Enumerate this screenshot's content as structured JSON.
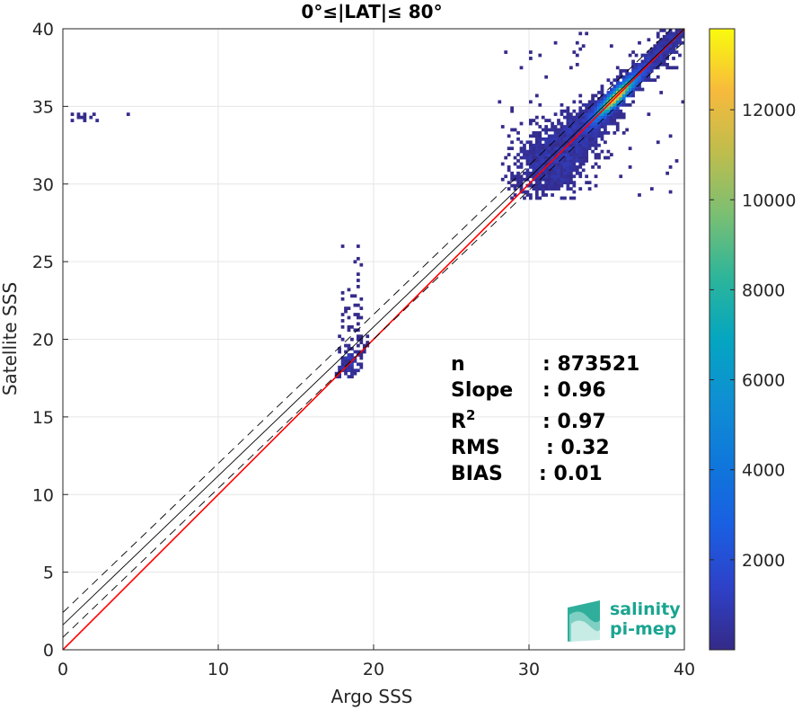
{
  "chart_data": {
    "type": "heatmap",
    "title": "0°≤|LAT|≤ 80°",
    "xlabel": "Argo SSS",
    "ylabel": "Satellite SSS",
    "xlim": [
      0,
      40
    ],
    "ylim": [
      0,
      40
    ],
    "xticks": [
      0,
      10,
      20,
      30,
      40
    ],
    "yticks": [
      0,
      5,
      10,
      15,
      20,
      25,
      30,
      35,
      40
    ],
    "grid": true,
    "colormap": "parula",
    "colorbar": {
      "range": [
        0,
        13800
      ],
      "ticks": [
        2000,
        4000,
        6000,
        8000,
        10000,
        12000
      ]
    },
    "lines": [
      {
        "role": "one-to-one",
        "color": "#ff0000",
        "style": "solid",
        "slope": 1.0,
        "intercept": 0.0
      },
      {
        "role": "regression",
        "color": "#000000",
        "style": "solid",
        "slope": 0.96,
        "intercept": 1.6
      },
      {
        "role": "regression-upper",
        "color": "#000000",
        "style": "dashed",
        "slope": 0.96,
        "intercept": 2.4
      },
      {
        "role": "regression-lower",
        "color": "#000000",
        "style": "dashed",
        "slope": 0.96,
        "intercept": 0.8
      }
    ],
    "stats": [
      {
        "label": "n",
        "sup": "",
        "value": ": 873521"
      },
      {
        "label": "Slope",
        "sup": "",
        "value": ": 0.96"
      },
      {
        "label": "R",
        "sup": "2",
        "value": ": 0.97"
      },
      {
        "label": "RMS",
        "sup": "",
        "value": ": 0.32"
      },
      {
        "label": "BIAS",
        "sup": "",
        "value": ": 0.01"
      }
    ],
    "density_clusters": [
      {
        "name": "main",
        "x_range": [
          28,
          40
        ],
        "y_range": [
          29,
          40
        ],
        "peak": 13800
      },
      {
        "name": "low-salinity",
        "x_range": [
          17.5,
          19.5
        ],
        "y_range": [
          17.5,
          26
        ],
        "peak": 1500
      },
      {
        "name": "outliers-top-left",
        "x_range": [
          0.5,
          5
        ],
        "y_range": [
          33.8,
          34.5
        ],
        "peak": 200
      }
    ]
  },
  "logo": {
    "line1": "salinity",
    "line2": "pi-mep"
  }
}
